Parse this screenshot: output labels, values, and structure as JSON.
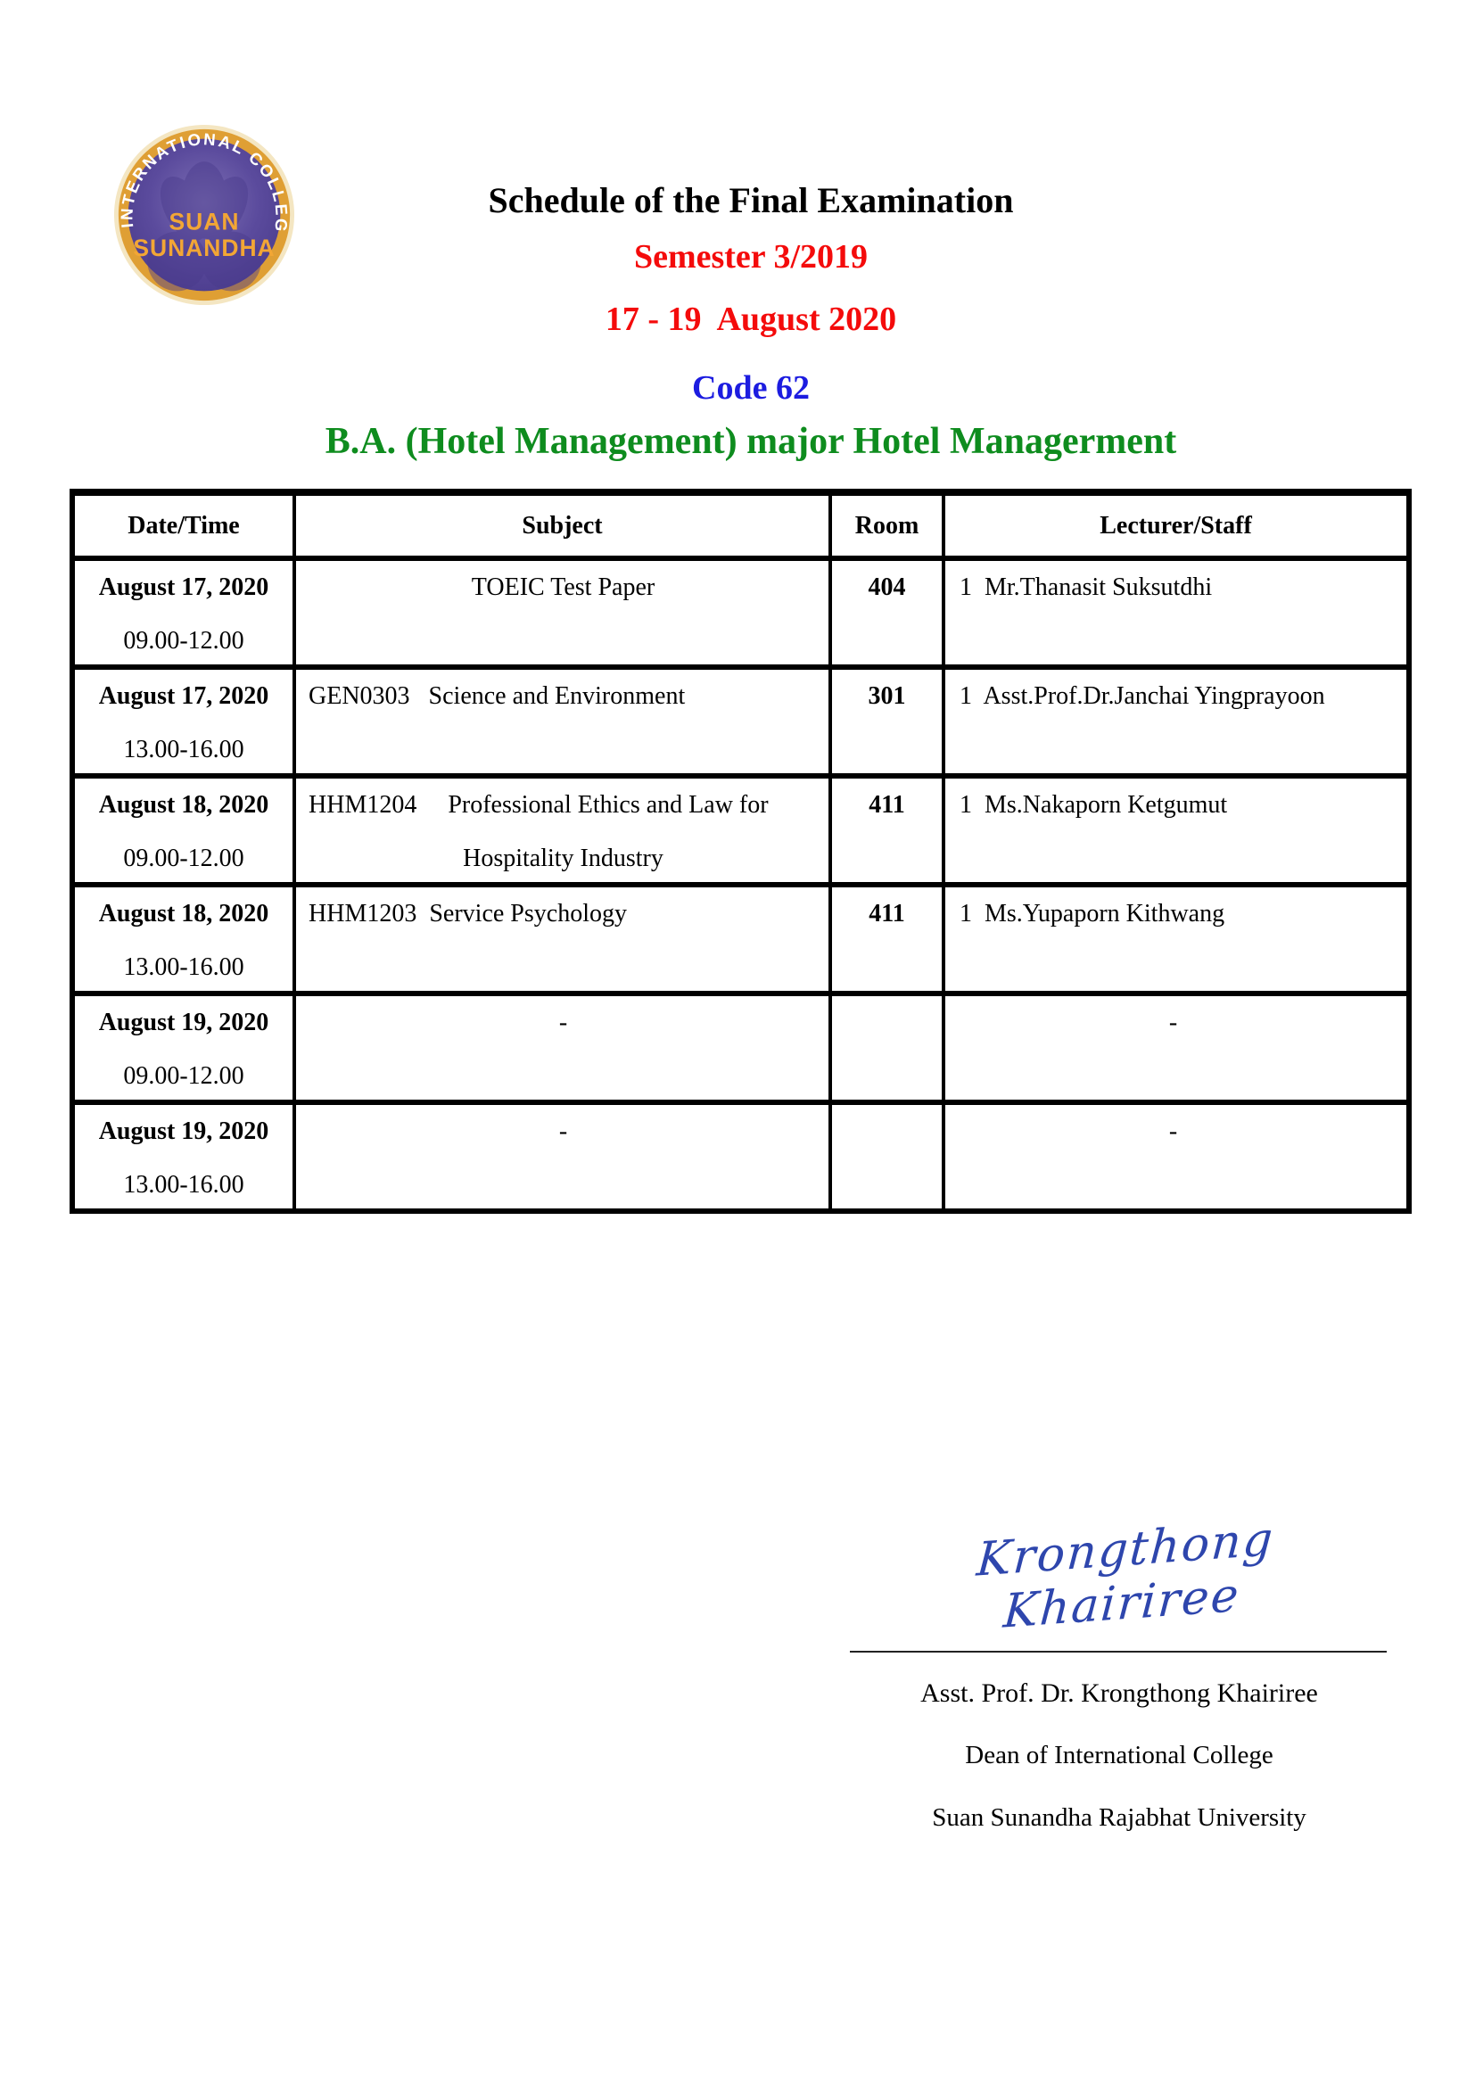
{
  "logo": {
    "arc_text": "INTERNATIONAL COLLEGE",
    "line1": "SUAN",
    "line2": "SUNANDHA",
    "colors": {
      "ring_light": "#f4e6c2",
      "ring_gold": "#df9f34",
      "purple": "#5b4b9d",
      "purple_dark": "#4a3b8c",
      "purple_light": "#7d6fb4",
      "text_gold": "#f2a635",
      "text_white": "#ffffff"
    }
  },
  "header": {
    "title": "Schedule of the Final Examination",
    "semester": "Semester 3/2019",
    "date_range": "17 - 19  August 2020",
    "code": "Code 62",
    "program": "B.A. (Hotel Management) major Hotel Managerment",
    "colors": {
      "title": "#000000",
      "accent_red": "#f40b0b",
      "accent_blue": "#1c1ce0",
      "accent_green": "#0e8c1e"
    }
  },
  "table": {
    "headers": [
      "Date/Time",
      "Subject",
      "Room",
      "Lecturer/Staff"
    ],
    "rows": [
      {
        "date": "August 17, 2020",
        "time": "09.00-12.00",
        "subject": {
          "line1": "TOEIC Test Paper",
          "line2": "",
          "align": "center"
        },
        "room": "404",
        "lecturer": {
          "text": "1  Mr.Thanasit Suksutdhi",
          "align": "left"
        }
      },
      {
        "date": "August 17, 2020",
        "time": "13.00-16.00",
        "subject": {
          "line1": "GEN0303   Science and Environment",
          "line2": "",
          "align": "left"
        },
        "room": "301",
        "lecturer": {
          "text": "1  Asst.Prof.Dr.Janchai Yingprayoon",
          "align": "left"
        }
      },
      {
        "date": "August 18, 2020",
        "time": "09.00-12.00",
        "subject": {
          "line1": "HHM1204     Professional Ethics and Law for",
          "line2": "Hospitality Industry",
          "align": "left"
        },
        "room": "411",
        "lecturer": {
          "text": "1  Ms.Nakaporn Ketgumut",
          "align": "left"
        }
      },
      {
        "date": "August 18, 2020",
        "time": "13.00-16.00",
        "subject": {
          "line1": "HHM1203  Service Psychology",
          "line2": "",
          "align": "left"
        },
        "room": "411",
        "lecturer": {
          "text": "1  Ms.Yupaporn Kithwang",
          "align": "left"
        }
      },
      {
        "date": "August 19, 2020",
        "time": "09.00-12.00",
        "subject": {
          "line1": "-",
          "line2": "",
          "align": "center"
        },
        "room": "",
        "lecturer": {
          "text": "-",
          "align": "center"
        }
      },
      {
        "date": "August 19, 2020",
        "time": "13.00-16.00",
        "subject": {
          "line1": "-",
          "line2": "",
          "align": "center"
        },
        "room": "",
        "lecturer": {
          "text": "-",
          "align": "center"
        }
      }
    ]
  },
  "signature": {
    "script_name": "Krongthong Khairiree",
    "name": "Asst. Prof. Dr. Krongthong Khairiree",
    "title": "Dean of International College",
    "university": "Suan Sunandha Rajabhat University",
    "ink_color": "#2e46ad"
  }
}
